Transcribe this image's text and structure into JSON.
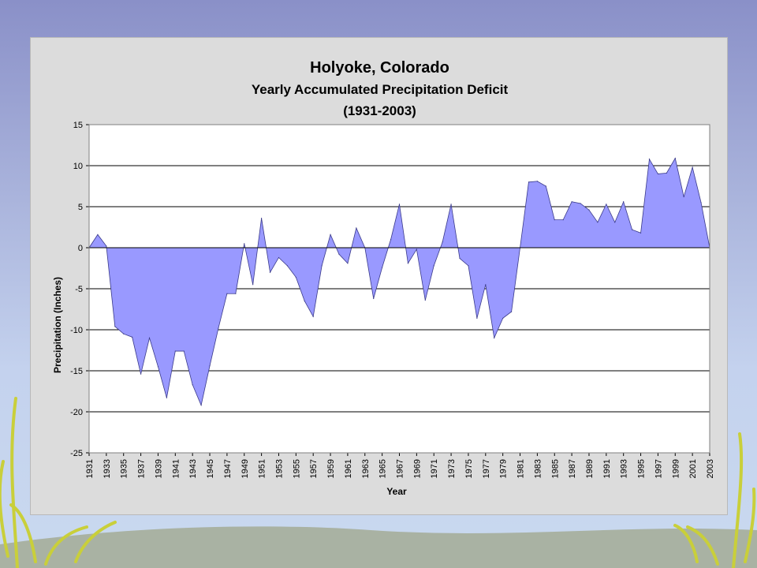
{
  "slide": {
    "background_colors": [
      "#8a90c8",
      "#c9d9ef"
    ],
    "ground_color": "#a9b2a3"
  },
  "chart_data": {
    "type": "area",
    "title": "Holyoke, Colorado",
    "subtitle_lines": [
      "Yearly Accumulated Precipitation Deficit",
      "(1931-2003)"
    ],
    "xlabel": "Year",
    "ylabel": "Precipitation (Inches)",
    "ylim": [
      -25,
      15
    ],
    "yticks": [
      15,
      10,
      5,
      0,
      -5,
      -10,
      -15,
      -20,
      -25
    ],
    "xtick_labels": [
      "1931",
      "1933",
      "1935",
      "1937",
      "1939",
      "1941",
      "1943",
      "1945",
      "1947",
      "1949",
      "1951",
      "1953",
      "1955",
      "1957",
      "1959",
      "1961",
      "1963",
      "1965",
      "1967",
      "1969",
      "1971",
      "1973",
      "1975",
      "1977",
      "1979",
      "1981",
      "1983",
      "1985",
      "1987",
      "1989",
      "1991",
      "1993",
      "1995",
      "1997",
      "1999",
      "2001",
      "2003"
    ],
    "grid": "horizontal",
    "fill_color": "#9999ff",
    "line_color": "#000000",
    "x": [
      1931,
      1932,
      1933,
      1934,
      1935,
      1936,
      1937,
      1938,
      1939,
      1940,
      1941,
      1942,
      1943,
      1944,
      1945,
      1946,
      1947,
      1948,
      1949,
      1950,
      1951,
      1952,
      1953,
      1954,
      1955,
      1956,
      1957,
      1958,
      1959,
      1960,
      1961,
      1962,
      1963,
      1964,
      1965,
      1966,
      1967,
      1968,
      1969,
      1970,
      1971,
      1972,
      1973,
      1974,
      1975,
      1976,
      1977,
      1978,
      1979,
      1980,
      1981,
      1982,
      1983,
      1984,
      1985,
      1986,
      1987,
      1988,
      1989,
      1990,
      1991,
      1992,
      1993,
      1994,
      1995,
      1996,
      1997,
      1998,
      1999,
      2000,
      2001,
      2002,
      2003
    ],
    "values": [
      0,
      1.6,
      0.2,
      -9.6,
      -10.5,
      -10.9,
      -15.4,
      -11,
      -14.5,
      -18.3,
      -12.6,
      -12.6,
      -16.7,
      -19.2,
      -14.4,
      -9.8,
      -5.6,
      -5.6,
      0.5,
      -4.5,
      3.6,
      -3,
      -1.2,
      -2.2,
      -3.6,
      -6.5,
      -8.4,
      -2.2,
      1.6,
      -0.8,
      -1.9,
      2.4,
      0,
      -6.2,
      -2.4,
      1,
      5.3,
      -1.9,
      -0.2,
      -6.4,
      -2.2,
      0.7,
      5.3,
      -1.3,
      -2.2,
      -8.6,
      -4.5,
      -11,
      -8.6,
      -7.8,
      0,
      8,
      8.1,
      7.5,
      3.4,
      3.4,
      5.6,
      5.4,
      4.6,
      3.1,
      5.3,
      3.1,
      5.6,
      2.2,
      1.8,
      10.8,
      9,
      9.1,
      10.9,
      6.2,
      9.8,
      5.5,
      0
    ]
  }
}
